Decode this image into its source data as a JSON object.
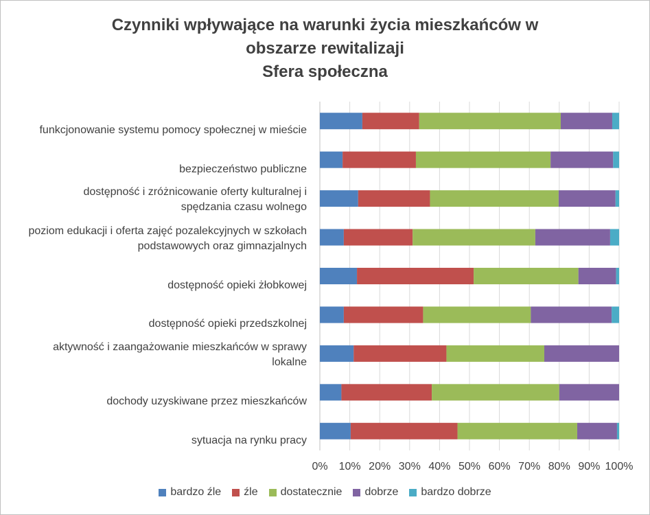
{
  "chart_data": {
    "type": "bar",
    "orientation": "horizontal",
    "stacked": "percent",
    "title_lines": [
      "Czynniki wpływające na warunki życia mieszkańców w",
      "obszarze rewitalizaji",
      "Sfera społeczna"
    ],
    "categories": [
      [
        "funkcjonowanie systemu pomocy społecznej w mieście"
      ],
      [
        "bezpieczeństwo publiczne"
      ],
      [
        "dostępność i zróżnicowanie oferty kulturalnej i",
        "spędzania czasu wolnego"
      ],
      [
        "poziom edukacji i oferta zajęć pozalekcyjnych w szkołach",
        "podstawowych oraz gimnazjalnych"
      ],
      [
        "dostępność opieki żłobkowej"
      ],
      [
        "dostępność opieki przedszkolnej"
      ],
      [
        "aktywność i zaangażowanie mieszkańców w sprawy",
        "lokalne"
      ],
      [
        "dochody uzyskiwane przez mieszkańców"
      ],
      [
        "sytuacja na rynku pracy"
      ]
    ],
    "series": [
      {
        "name": "bardzo źle",
        "color": "#4f81bd",
        "values": [
          14.2,
          7.6,
          12.8,
          8.0,
          12.4,
          8.0,
          11.3,
          7.2,
          10.3
        ]
      },
      {
        "name": "źle",
        "color": "#c0504d",
        "values": [
          19.0,
          24.5,
          24.0,
          23.0,
          39.0,
          26.5,
          31.0,
          30.2,
          35.7
        ]
      },
      {
        "name": "dostatecznie",
        "color": "#9bbb59",
        "values": [
          47.3,
          45.0,
          43.0,
          41.0,
          35.0,
          36.0,
          32.7,
          42.6,
          40.0
        ]
      },
      {
        "name": "dobrze",
        "color": "#8064a2",
        "values": [
          17.2,
          20.9,
          19.0,
          25.0,
          12.6,
          27.0,
          25.0,
          20.0,
          13.3
        ]
      },
      {
        "name": "bardzo dobrze",
        "color": "#4bacc6",
        "values": [
          2.3,
          2.0,
          1.2,
          3.0,
          1.0,
          2.5,
          0,
          0,
          0.7
        ]
      }
    ],
    "xaxis": {
      "range": [
        0,
        100
      ],
      "ticks": [
        "0%",
        "10%",
        "20%",
        "30%",
        "40%",
        "50%",
        "60%",
        "70%",
        "80%",
        "90%",
        "100%"
      ]
    },
    "grid": true,
    "legend_position": "bottom"
  }
}
